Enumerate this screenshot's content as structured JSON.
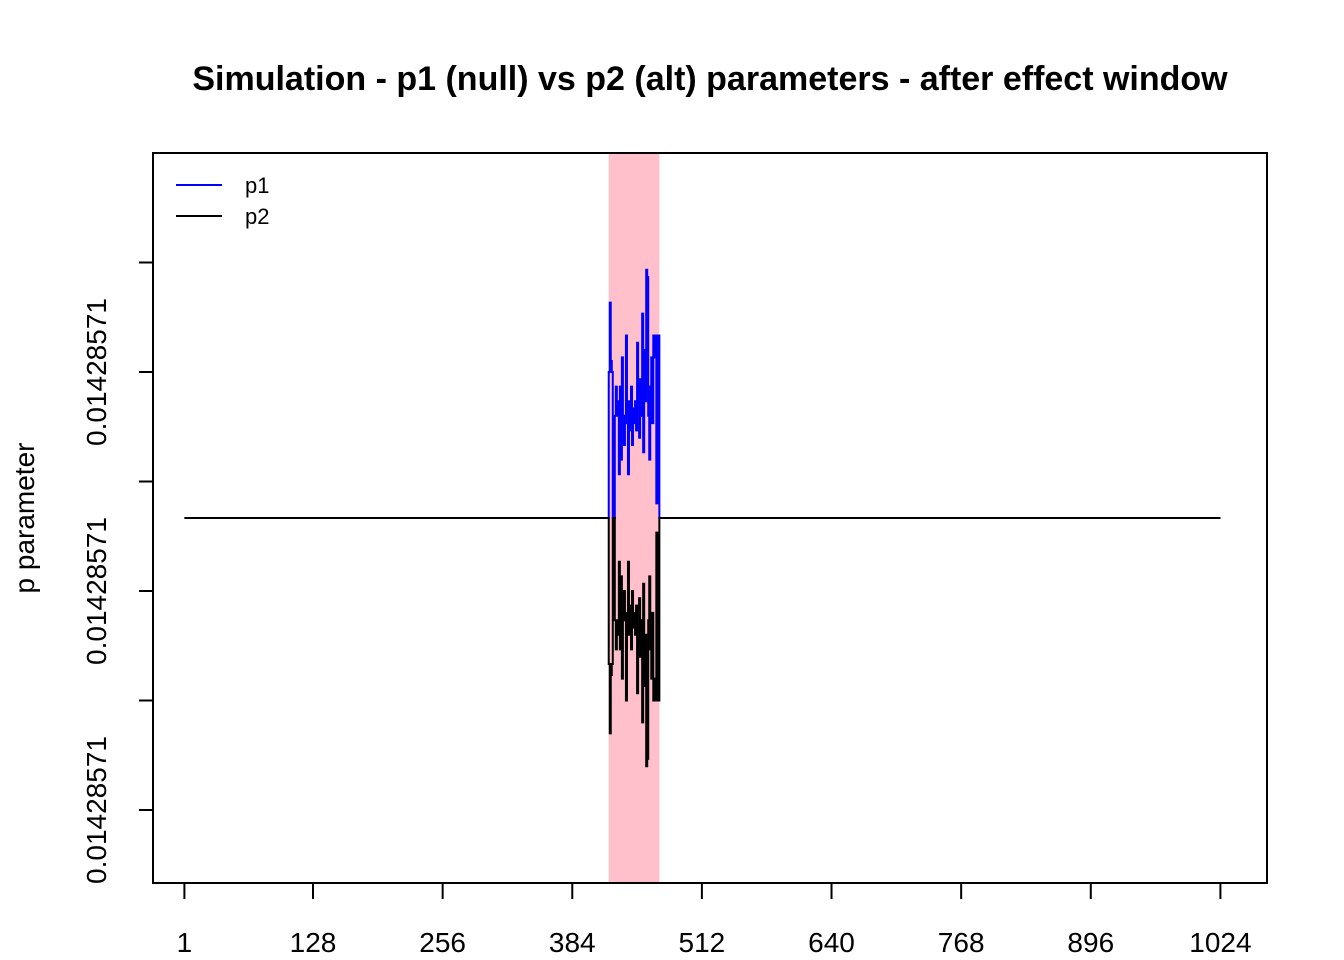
{
  "chart_data": {
    "type": "line",
    "title": "Simulation - p1 (null) vs p2 (alt) parameters - after effect window",
    "xlabel": "",
    "ylabel": "p parameter",
    "xlim": [
      -30,
      1070
    ],
    "ylim": [
      0.0142857,
      0.0142858
    ],
    "x_ticks": [
      1,
      128,
      256,
      384,
      512,
      640,
      768,
      896,
      1024
    ],
    "y_ticks": [
      {
        "value": 0.01428571,
        "label": "0.01428571"
      },
      {
        "value": 0.014285725,
        "label": ""
      },
      {
        "value": 0.01428574,
        "label": "0.01428571"
      },
      {
        "value": 0.014285755,
        "label": ""
      },
      {
        "value": 0.01428577,
        "label": "0.01428571"
      },
      {
        "value": 0.014285785,
        "label": ""
      }
    ],
    "baseline": 0.01428575,
    "highlight_region": {
      "x_start": 420,
      "x_end": 470,
      "color": "#ffc0cb"
    },
    "legend": {
      "position": "top-left",
      "entries": [
        {
          "name": "p1",
          "color": "#0000ff"
        },
        {
          "name": "p2",
          "color": "#000000"
        }
      ]
    },
    "series": [
      {
        "name": "p1",
        "color": "#0000ff",
        "x": [
          1,
          420,
          421,
          422,
          423,
          424,
          425,
          426,
          427,
          428,
          429,
          430,
          431,
          432,
          433,
          434,
          435,
          436,
          437,
          438,
          439,
          440,
          441,
          442,
          443,
          444,
          445,
          446,
          447,
          448,
          449,
          450,
          451,
          452,
          453,
          454,
          455,
          456,
          457,
          458,
          459,
          460,
          461,
          462,
          463,
          464,
          465,
          466,
          467,
          468,
          469,
          470,
          1024
        ],
        "y": [
          0.01428575,
          0.01428577,
          0.0142857795,
          0.0142857715,
          0.01428577,
          0.01428575,
          0.01428575,
          0.014285764,
          0.014285768,
          0.014285764,
          0.014285766,
          0.014285756,
          0.014285768,
          0.014285758,
          0.014285772,
          0.014285763,
          0.01428576,
          0.014285764,
          0.014285775,
          0.014285763,
          0.014285756,
          0.014285766,
          0.014285762,
          0.014285768,
          0.01428576,
          0.014285765,
          0.014285763,
          0.014285766,
          0.014285762,
          0.014285774,
          0.014285767,
          0.014285761,
          0.014285769,
          0.014285764,
          0.014285778,
          0.014285759,
          0.014285773,
          0.014285766,
          0.014285784,
          0.014285783,
          0.014285764,
          0.014285758,
          0.014285768,
          0.014285772,
          0.014285763,
          0.014285775,
          0.014285772,
          0.014285775,
          0.014285752,
          0.014285772,
          0.014285775,
          0.01428575,
          0.01428575
        ]
      },
      {
        "name": "p2",
        "color": "#000000",
        "x": [
          1,
          420,
          421,
          422,
          423,
          424,
          425,
          426,
          427,
          428,
          429,
          430,
          431,
          432,
          433,
          434,
          435,
          436,
          437,
          438,
          439,
          440,
          441,
          442,
          443,
          444,
          445,
          446,
          447,
          448,
          449,
          450,
          451,
          452,
          453,
          454,
          455,
          456,
          457,
          458,
          459,
          460,
          461,
          462,
          463,
          464,
          465,
          466,
          467,
          468,
          469,
          470,
          1024
        ],
        "y": [
          0.01428575,
          0.01428573,
          0.0142857205,
          0.0142857285,
          0.01428573,
          0.01428575,
          0.01428575,
          0.014285736,
          0.014285732,
          0.014285736,
          0.014285734,
          0.014285744,
          0.014285732,
          0.014285742,
          0.014285728,
          0.014285737,
          0.01428574,
          0.014285736,
          0.014285725,
          0.014285737,
          0.014285744,
          0.014285734,
          0.014285738,
          0.014285732,
          0.01428574,
          0.014285735,
          0.014285737,
          0.014285734,
          0.014285738,
          0.014285726,
          0.014285733,
          0.014285739,
          0.014285731,
          0.014285736,
          0.014285722,
          0.014285741,
          0.014285727,
          0.014285734,
          0.014285716,
          0.014285717,
          0.014285736,
          0.014285742,
          0.014285732,
          0.014285728,
          0.014285737,
          0.014285725,
          0.014285728,
          0.014285725,
          0.014285748,
          0.014285728,
          0.014285725,
          0.01428575,
          0.01428575
        ]
      }
    ]
  }
}
